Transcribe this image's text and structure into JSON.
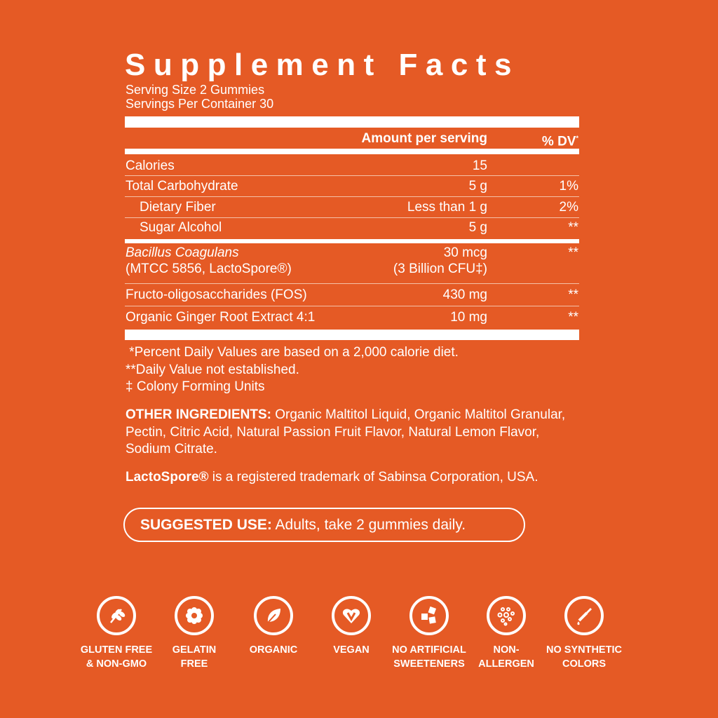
{
  "title": "Supplement Facts",
  "serving_size": "Serving Size 2 Gummies",
  "servings_per_container": "Servings Per Container 30",
  "header": {
    "amount": "Amount per serving",
    "dv": "% DV",
    "dv_mark": "*"
  },
  "rows": [
    {
      "name": "Calories",
      "amount": "15",
      "dv": ""
    },
    {
      "name": "Total Carbohydrate",
      "amount": "5 g",
      "dv": "1%"
    },
    {
      "name": "Dietary Fiber",
      "amount": "Less than 1 g",
      "dv": "2%"
    },
    {
      "name": "Sugar Alcohol",
      "amount": "5 g",
      "dv": "**"
    },
    {
      "name": "Bacillus Coagulans",
      "name2": "(MTCC 5856, LactoSpore®)",
      "amount": "30 mcg",
      "amount2": "(3 Billion CFU‡)",
      "dv": "**"
    },
    {
      "name": "Fructo-oligosaccharides (FOS)",
      "amount": "430 mg",
      "dv": "**"
    },
    {
      "name": "Organic Ginger Root Extract 4:1",
      "amount": "10 mg",
      "dv": "**"
    }
  ],
  "footnotes": [
    " *Percent Daily Values are based on a 2,000 calorie diet.",
    "**Daily Value not established.",
    "‡ Colony Forming Units"
  ],
  "other_ingredients": {
    "label": "OTHER INGREDIENTS:",
    "text": " Organic Maltitol Liquid, Organic Maltitol Granular, Pectin, Citric Acid, Natural Passion Fruit Flavor, Natural Lemon Flavor, Sodium Citrate."
  },
  "trademark": {
    "brand": "LactoSpore®",
    "text": " is a registered trademark of Sabinsa Corporation, USA."
  },
  "suggested_use": {
    "label": "SUGGESTED USE:",
    "text": " Adults, take 2 gummies daily."
  },
  "badges": [
    {
      "icon": "wheat-icon",
      "line1": "GLUTEN FREE",
      "line2": "& NON-GMO"
    },
    {
      "icon": "flower-icon",
      "line1": "GELATIN",
      "line2": "FREE"
    },
    {
      "icon": "leaf-icon",
      "line1": "ORGANIC",
      "line2": ""
    },
    {
      "icon": "heart-v-icon",
      "line1": "VEGAN",
      "line2": ""
    },
    {
      "icon": "sugar-cubes-icon",
      "line1": "NO ARTIFICIAL",
      "line2": "SWEETENERS"
    },
    {
      "icon": "dots-icon",
      "line1": "NON-",
      "line2": "ALLERGEN"
    },
    {
      "icon": "dropper-icon",
      "line1": "NO SYNTHETIC",
      "line2": "COLORS"
    }
  ],
  "colors": {
    "background": "#E55A25",
    "foreground": "#FFFFFF"
  }
}
